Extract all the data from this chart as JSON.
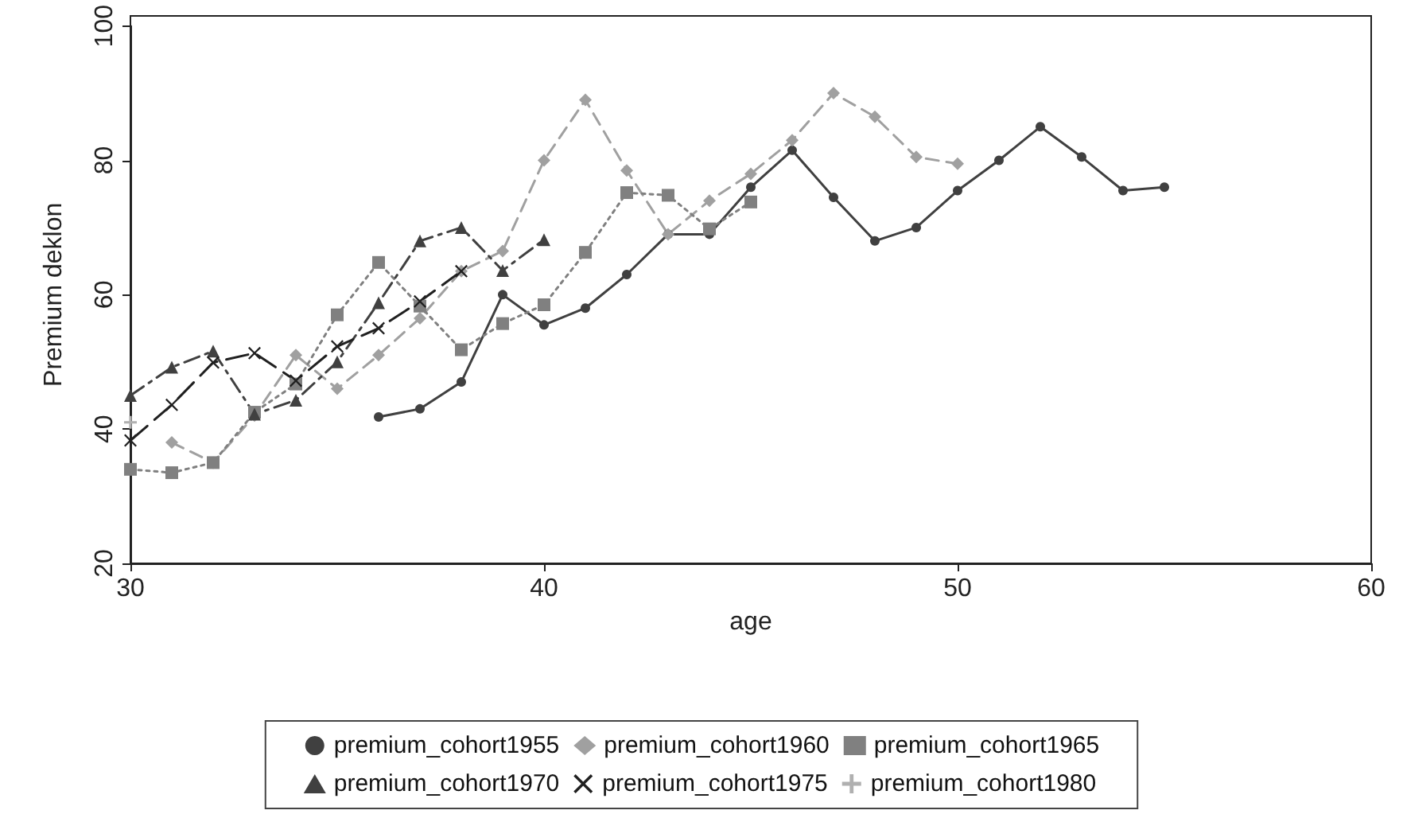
{
  "chart_data": {
    "type": "line",
    "xlabel": "age",
    "ylabel": "Premium deklon",
    "xlim": [
      30,
      60
    ],
    "xticks": [
      30,
      40,
      50,
      60
    ],
    "ylim": [
      20,
      100
    ],
    "yticks": [
      20,
      40,
      60,
      80,
      100
    ],
    "grid": false,
    "legend": "bottom",
    "series": [
      {
        "name": "premium_cohort1955",
        "color": "#404040",
        "marker": "circle",
        "line_style": "solid",
        "x": [
          36,
          37,
          38,
          39,
          40,
          41,
          42,
          43,
          44,
          45,
          46,
          47,
          48,
          49,
          50,
          51,
          52,
          53,
          54,
          55
        ],
        "values": [
          41.8,
          43,
          47,
          60,
          55.5,
          58,
          63,
          69,
          69,
          76,
          81.5,
          74.5,
          68,
          70,
          75.5,
          80,
          85,
          80.5,
          75.5,
          76
        ]
      },
      {
        "name": "premium_cohort1960",
        "color": "#a0a0a0",
        "marker": "diamond",
        "line_style": "dashed",
        "x": [
          31,
          32,
          33,
          34,
          35,
          36,
          37,
          38,
          39,
          40,
          41,
          42,
          43,
          44,
          45,
          46,
          47,
          48,
          49,
          50
        ],
        "values": [
          38,
          35,
          42,
          51,
          46,
          51,
          56.5,
          63.5,
          66.5,
          80,
          89,
          78.5,
          69,
          74,
          78,
          83,
          90,
          86.5,
          80.5,
          79.5
        ]
      },
      {
        "name": "premium_cohort1965",
        "color": "#808080",
        "marker": "square",
        "line_style": "dotted",
        "x": [
          30,
          31,
          32,
          33,
          34,
          35,
          36,
          37,
          38,
          39,
          40,
          41,
          42,
          43,
          44,
          45
        ],
        "values": [
          34,
          33.5,
          35,
          42.5,
          46.7,
          57,
          64.8,
          58.3,
          51.8,
          55.7,
          58.5,
          66.3,
          75.2,
          74.8,
          69.8,
          73.8
        ]
      },
      {
        "name": "premium_cohort1970",
        "color": "#404040",
        "marker": "triangle",
        "line_style": "dashdot",
        "x": [
          30,
          31,
          32,
          33,
          34,
          35,
          36,
          37,
          38,
          39,
          40
        ],
        "values": [
          45,
          49.2,
          51.6,
          42.2,
          44.3,
          50,
          58.8,
          68,
          70,
          63.6,
          68.2
        ]
      },
      {
        "name": "premium_cohort1975",
        "color": "#202020",
        "marker": "cross",
        "line_style": "longdash",
        "x": [
          30,
          31,
          32,
          33,
          34,
          35,
          36,
          37,
          38
        ],
        "values": [
          38.3,
          43.6,
          49.9,
          51.3,
          47.2,
          52.3,
          55,
          59,
          63.5
        ]
      },
      {
        "name": "premium_cohort1980",
        "color": "#b0b0b0",
        "marker": "plus",
        "line_style": "dashdot",
        "x": [
          30
        ],
        "values": [
          41
        ]
      }
    ]
  }
}
